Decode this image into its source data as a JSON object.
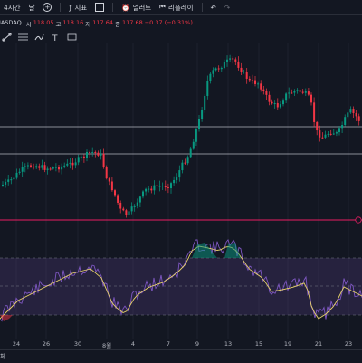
{
  "toolbar": {
    "timeframe": "4시간",
    "chart_type": "날",
    "indicators": "지표",
    "layouts": "",
    "alert": "얼러트",
    "replay": "리플레이"
  },
  "legend": {
    "symbol": "NASDAQ",
    "open_label": "시",
    "open_value": "118.05",
    "high_label": "고",
    "high_value": "118.16",
    "low_label": "저",
    "low_value": "117.64",
    "close_label": "종",
    "close_value": "117.68",
    "change": "−0.37 (−0.31%)",
    "down_color": "#f23645",
    "up_color": "#089981"
  },
  "xaxis": {
    "labels": [
      "24",
      "26",
      "30",
      "8월",
      "4",
      "7",
      "9",
      "13",
      "15",
      "19",
      "21",
      "23"
    ]
  },
  "bottom": {
    "label": "체"
  },
  "chart": {
    "price_up_color": "#089981",
    "price_down_color": "#f23645",
    "rsi_line_color": "#7e57c2",
    "rsi_ma_color": "#e8d36a",
    "rsi_band_color": "#7e57c2",
    "horizontal_line_color": "#b2b5be",
    "hline_pink_color": "#e91e63"
  }
}
